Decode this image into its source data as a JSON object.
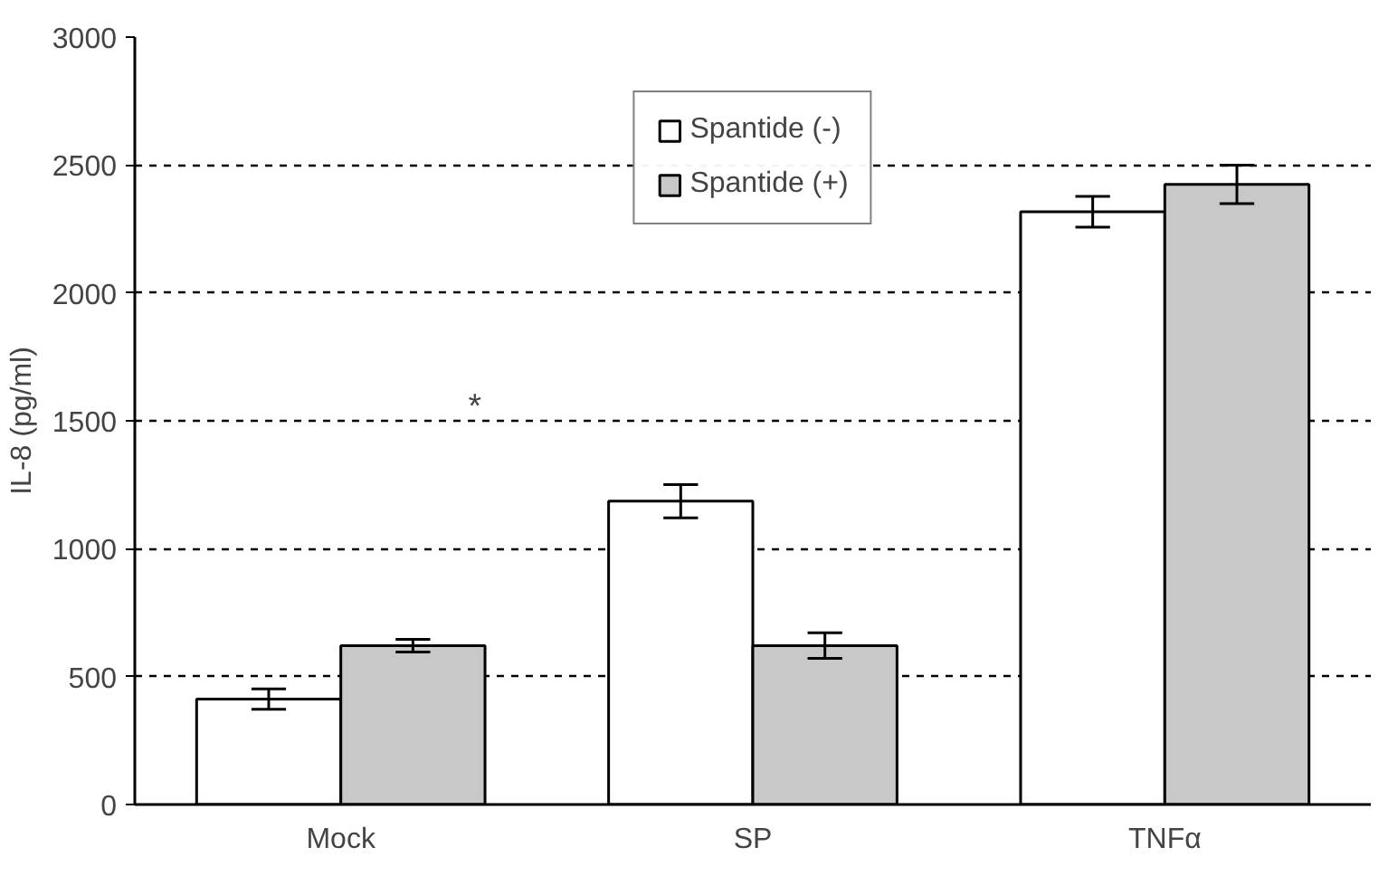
{
  "chart_data": {
    "type": "bar",
    "ylabel": "IL-8 (pg/ml)",
    "categories": [
      "Mock",
      "SP",
      "TNFα"
    ],
    "series": [
      {
        "name": "Spantide (-)",
        "color": "#ffffff",
        "values": [
          412,
          1186,
          2317
        ],
        "errors": [
          40,
          65,
          60
        ]
      },
      {
        "name": "Spantide (+)",
        "color": "#c8c8c8",
        "values": [
          621,
          621,
          2424
        ],
        "errors": [
          25,
          50,
          75
        ]
      }
    ],
    "ylim": [
      0,
      3000
    ],
    "yticks": [
      0,
      500,
      1000,
      1500,
      2000,
      2500,
      3000
    ],
    "grid": "y",
    "legend": "top",
    "annotations": [
      "*"
    ]
  }
}
